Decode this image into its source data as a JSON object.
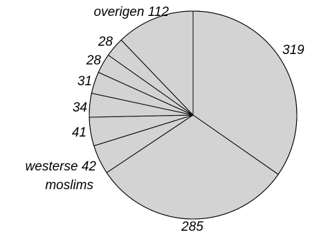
{
  "chart_data": {
    "type": "pie",
    "start_angle_deg": 0,
    "direction": "clockwise",
    "slice_color": "#d3d3d3",
    "stroke_color": "#000000",
    "slices": [
      {
        "label": "",
        "value": 319,
        "value_text": "319"
      },
      {
        "label": "",
        "value": 285,
        "value_text": "285"
      },
      {
        "label": "westerse moslims",
        "value": 42,
        "value_text": "42"
      },
      {
        "label": "",
        "value": 41,
        "value_text": "41"
      },
      {
        "label": "",
        "value": 34,
        "value_text": "34"
      },
      {
        "label": "",
        "value": 31,
        "value_text": "31"
      },
      {
        "label": "",
        "value": 28,
        "value_text": "28"
      },
      {
        "label": "",
        "value": 28,
        "value_text": "28"
      },
      {
        "label": "overigen",
        "value": 112,
        "value_text": "overigen 112"
      }
    ],
    "annotations": {
      "westerse_line1": "westerse 42",
      "westerse_line2": "moslims"
    }
  }
}
